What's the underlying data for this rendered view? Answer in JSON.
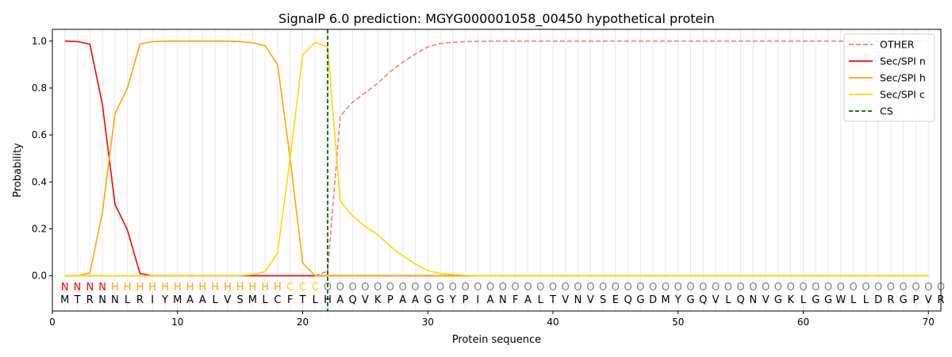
{
  "chart_data": {
    "type": "line",
    "title": "SignalP 6.0 prediction: MGYG000001058_00450 hypothetical protein",
    "xlabel": "Protein sequence",
    "ylabel": "Probability",
    "xlim": [
      0,
      71
    ],
    "ylim": [
      -0.15,
      1.05
    ],
    "x_ticks": [
      0,
      10,
      20,
      30,
      40,
      50,
      60,
      70
    ],
    "y_ticks": [
      0.0,
      0.2,
      0.4,
      0.6,
      0.8,
      1.0
    ],
    "x_tick_labels": [
      "0",
      "10",
      "20",
      "30",
      "40",
      "50",
      "60",
      "70"
    ],
    "y_tick_labels": [
      "0.0",
      "0.2",
      "0.4",
      "0.6",
      "0.8",
      "1.0"
    ],
    "legend_position": "top-right",
    "sequence": "MTRNNLRIYMAALVSMLCFTLHAQVKPAAGGYPIANFALTVNVSEQGDMYGQVLQNVGKLGGWLLDRGPVR",
    "region_labels": "NNNNHHHHHHHHHHHHHHCCCOOOOOOOOOOOOOOOOOOOOOOOOOOOOOOOOOOOOOOOOOOOOOOOOOOO",
    "region_colors": {
      "N": "#ff0000",
      "H": "#ffa500",
      "C": "#ffd700",
      "O": "#808080"
    },
    "series": [
      {
        "name": "OTHER",
        "color": "#f08080",
        "dash": true,
        "values": [
          0.0,
          0.0,
          0.0,
          0.0,
          0.0,
          0.0,
          0.0,
          0.0,
          0.0,
          0.0,
          0.0,
          0.0,
          0.0,
          0.0,
          0.0,
          0.0,
          0.0,
          0.0,
          0.0,
          0.0,
          0.0,
          0.02,
          0.68,
          0.74,
          0.78,
          0.82,
          0.87,
          0.91,
          0.945,
          0.975,
          0.99,
          0.995,
          0.998,
          0.999,
          1.0,
          1.0,
          1.0,
          1.0,
          1.0,
          1.0,
          1.0,
          1.0,
          1.0,
          1.0,
          1.0,
          1.0,
          1.0,
          1.0,
          1.0,
          1.0,
          1.0,
          1.0,
          1.0,
          1.0,
          1.0,
          1.0,
          1.0,
          1.0,
          1.0,
          1.0,
          1.0,
          1.0,
          1.0,
          1.0,
          1.0,
          1.0,
          1.0,
          1.0,
          1.0,
          1.0
        ]
      },
      {
        "name": "Sec/SPI n",
        "color": "#ff0000",
        "dash": false,
        "values": [
          1.0,
          0.998,
          0.987,
          0.73,
          0.305,
          0.195,
          0.01,
          0.0,
          0.0,
          0.0,
          0.0,
          0.0,
          0.0,
          0.0,
          0.0,
          0.0,
          0.0,
          0.0,
          0.0,
          0.0,
          0.0,
          0.0,
          0.0,
          0.0,
          0.0,
          0.0,
          0.0,
          0.0,
          0.0,
          0.0,
          0.0,
          0.0,
          0.0,
          0.0,
          0.0,
          0.0,
          0.0,
          0.0,
          0.0,
          0.0,
          0.0,
          0.0,
          0.0,
          0.0,
          0.0,
          0.0,
          0.0,
          0.0,
          0.0,
          0.0,
          0.0,
          0.0,
          0.0,
          0.0,
          0.0,
          0.0,
          0.0,
          0.0,
          0.0,
          0.0,
          0.0,
          0.0,
          0.0,
          0.0,
          0.0,
          0.0,
          0.0,
          0.0,
          0.0,
          0.0
        ]
      },
      {
        "name": "Sec/SPI h",
        "color": "#ffa500",
        "dash": false,
        "values": [
          0.0,
          0.0,
          0.012,
          0.27,
          0.69,
          0.8,
          0.987,
          0.998,
          1.0,
          1.0,
          1.0,
          1.0,
          1.0,
          1.0,
          0.998,
          0.993,
          0.98,
          0.9,
          0.5,
          0.055,
          0.0,
          0.0,
          0.0,
          0.0,
          0.0,
          0.0,
          0.0,
          0.0,
          0.0,
          0.0,
          0.0,
          0.0,
          0.0,
          0.0,
          0.0,
          0.0,
          0.0,
          0.0,
          0.0,
          0.0,
          0.0,
          0.0,
          0.0,
          0.0,
          0.0,
          0.0,
          0.0,
          0.0,
          0.0,
          0.0,
          0.0,
          0.0,
          0.0,
          0.0,
          0.0,
          0.0,
          0.0,
          0.0,
          0.0,
          0.0,
          0.0,
          0.0,
          0.0,
          0.0,
          0.0,
          0.0,
          0.0,
          0.0,
          0.0,
          0.0
        ]
      },
      {
        "name": "Sec/SPI c",
        "color": "#ffd700",
        "dash": false,
        "values": [
          0.0,
          0.0,
          0.0,
          0.0,
          0.0,
          0.0,
          0.0,
          0.0,
          0.0,
          0.0,
          0.0,
          0.0,
          0.0,
          0.0,
          0.0,
          0.005,
          0.018,
          0.098,
          0.5,
          0.942,
          0.994,
          0.975,
          0.318,
          0.255,
          0.21,
          0.175,
          0.125,
          0.085,
          0.05,
          0.022,
          0.01,
          0.005,
          0.002,
          0.0,
          0.0,
          0.0,
          0.0,
          0.0,
          0.0,
          0.0,
          0.0,
          0.0,
          0.0,
          0.0,
          0.0,
          0.0,
          0.0,
          0.0,
          0.0,
          0.0,
          0.0,
          0.0,
          0.0,
          0.0,
          0.0,
          0.0,
          0.0,
          0.0,
          0.0,
          0.0,
          0.0,
          0.0,
          0.0,
          0.0,
          0.0,
          0.0,
          0.0,
          0.0,
          0.0,
          0.0
        ]
      }
    ],
    "cleavage_site": {
      "name": "CS",
      "x": 22,
      "color": "#006400"
    }
  }
}
